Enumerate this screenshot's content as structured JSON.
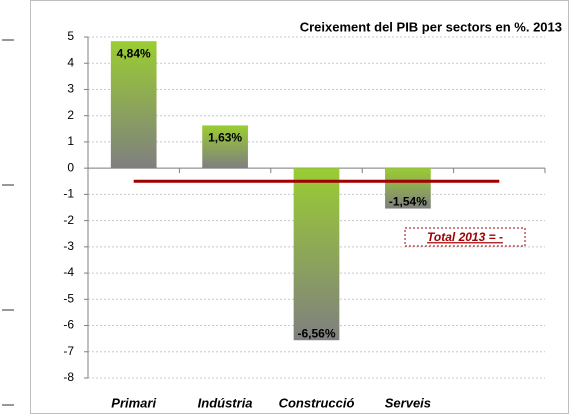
{
  "chart_data": {
    "type": "bar",
    "title": "Creixement del PIB per sectors en %. 2013",
    "categories": [
      "Primari",
      "Indústria",
      "Construcció",
      "Serveis",
      null
    ],
    "values": [
      4.84,
      1.63,
      -6.56,
      -1.54,
      null
    ],
    "value_labels": [
      "4,84%",
      "1,63%",
      "-6,56%",
      "-1,54%",
      null
    ],
    "color": [
      "#9acd32",
      "#7f7f7f"
    ],
    "ylim": [
      -8,
      5
    ],
    "yticks": [
      -8,
      -7,
      -6,
      -5,
      -4,
      -3,
      -2,
      -1,
      0,
      1,
      2,
      3,
      4,
      5
    ],
    "grid": true,
    "reference_line": {
      "value": -0.5,
      "color": "#a00000"
    },
    "annotation": "Total 2013 = -"
  }
}
